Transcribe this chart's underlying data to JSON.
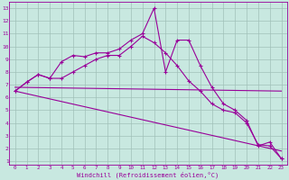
{
  "bg_color": "#c8e8e0",
  "line_color": "#990099",
  "grid_color": "#a0c0b8",
  "xlabel": "Windchill (Refroidissement éolien,°C)",
  "xmin": -0.5,
  "xmax": 23.5,
  "ymin": 0.7,
  "ymax": 13.5,
  "xticks": [
    0,
    1,
    2,
    3,
    4,
    5,
    6,
    7,
    8,
    9,
    10,
    11,
    12,
    13,
    14,
    15,
    16,
    17,
    18,
    19,
    20,
    21,
    22,
    23
  ],
  "yticks": [
    1,
    2,
    3,
    4,
    5,
    6,
    7,
    8,
    9,
    10,
    11,
    12,
    13
  ],
  "spiky_x": [
    0,
    1,
    2,
    3,
    4,
    5,
    6,
    7,
    8,
    9,
    10,
    11,
    12,
    13,
    14,
    15,
    16,
    17,
    18,
    19,
    20,
    21,
    22,
    23
  ],
  "spiky_y": [
    6.5,
    7.2,
    7.8,
    7.5,
    8.8,
    9.3,
    9.2,
    9.5,
    9.5,
    9.8,
    10.5,
    11.0,
    13.0,
    8.0,
    10.5,
    10.5,
    8.5,
    6.8,
    5.5,
    5.0,
    4.2,
    2.2,
    2.5,
    1.2
  ],
  "smooth_x": [
    0,
    1,
    2,
    3,
    4,
    5,
    6,
    7,
    8,
    9,
    10,
    11,
    12,
    13,
    14,
    15,
    16,
    17,
    18,
    19,
    20,
    21,
    22,
    23
  ],
  "smooth_y": [
    6.5,
    7.2,
    7.8,
    7.5,
    7.5,
    8.0,
    8.5,
    9.0,
    9.3,
    9.3,
    10.0,
    10.8,
    10.3,
    9.5,
    8.5,
    7.3,
    6.5,
    5.5,
    5.0,
    4.8,
    4.0,
    2.3,
    2.2,
    1.2
  ],
  "line1_x": [
    0,
    23
  ],
  "line1_y": [
    6.8,
    6.5
  ],
  "line2_x": [
    0,
    23
  ],
  "line2_y": [
    6.5,
    1.8
  ]
}
